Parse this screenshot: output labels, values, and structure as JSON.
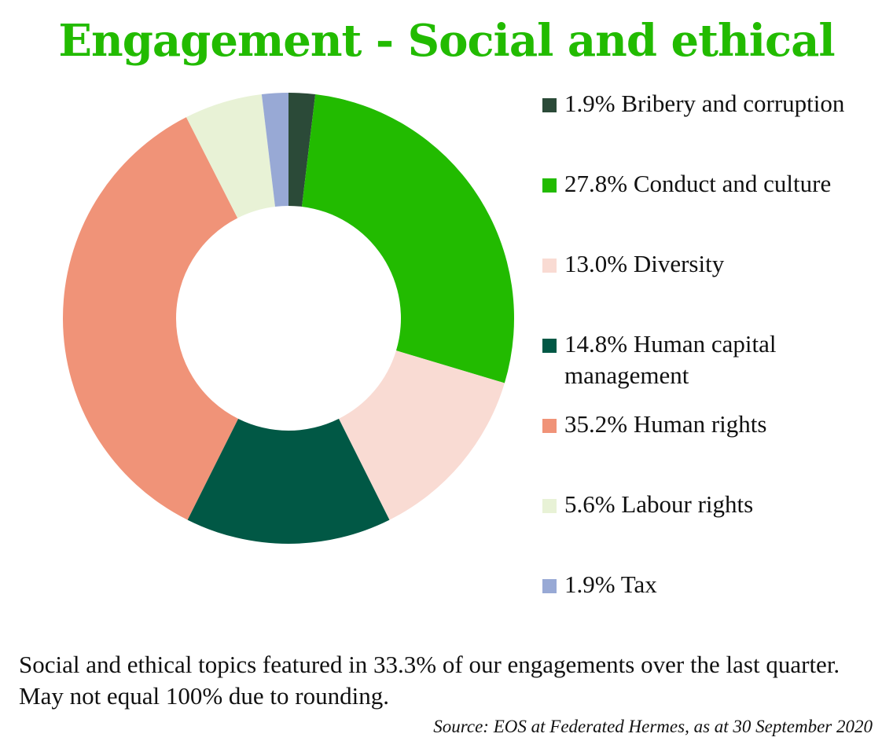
{
  "title": "Engagement - Social and ethical",
  "colors": {
    "title": "#22bb00"
  },
  "chart_data": {
    "type": "pie",
    "style": "donut",
    "legend_position": "right",
    "slices": [
      {
        "label": "1.9% Bribery and corruption",
        "value": 1.9,
        "color": "#2b4a38"
      },
      {
        "label": "27.8% Conduct and culture",
        "value": 27.8,
        "color": "#22bb00"
      },
      {
        "label": "13.0% Diversity",
        "value": 13.0,
        "color": "#f9dbd3"
      },
      {
        "label": "14.8% Human capital management",
        "value": 14.8,
        "color": "#015845"
      },
      {
        "label": "35.2% Human rights",
        "value": 35.2,
        "color": "#f09378"
      },
      {
        "label": "5.6% Labour rights",
        "value": 5.6,
        "color": "#e8f2d6"
      },
      {
        "label": "1.9% Tax",
        "value": 1.9,
        "color": "#98a9d5"
      }
    ]
  },
  "note": "Social and ethical topics featured in 33.3% of our engagements over the last quarter. May not equal 100% due to rounding.",
  "source": "Source: EOS at Federated Hermes, as at 30 September 2020"
}
